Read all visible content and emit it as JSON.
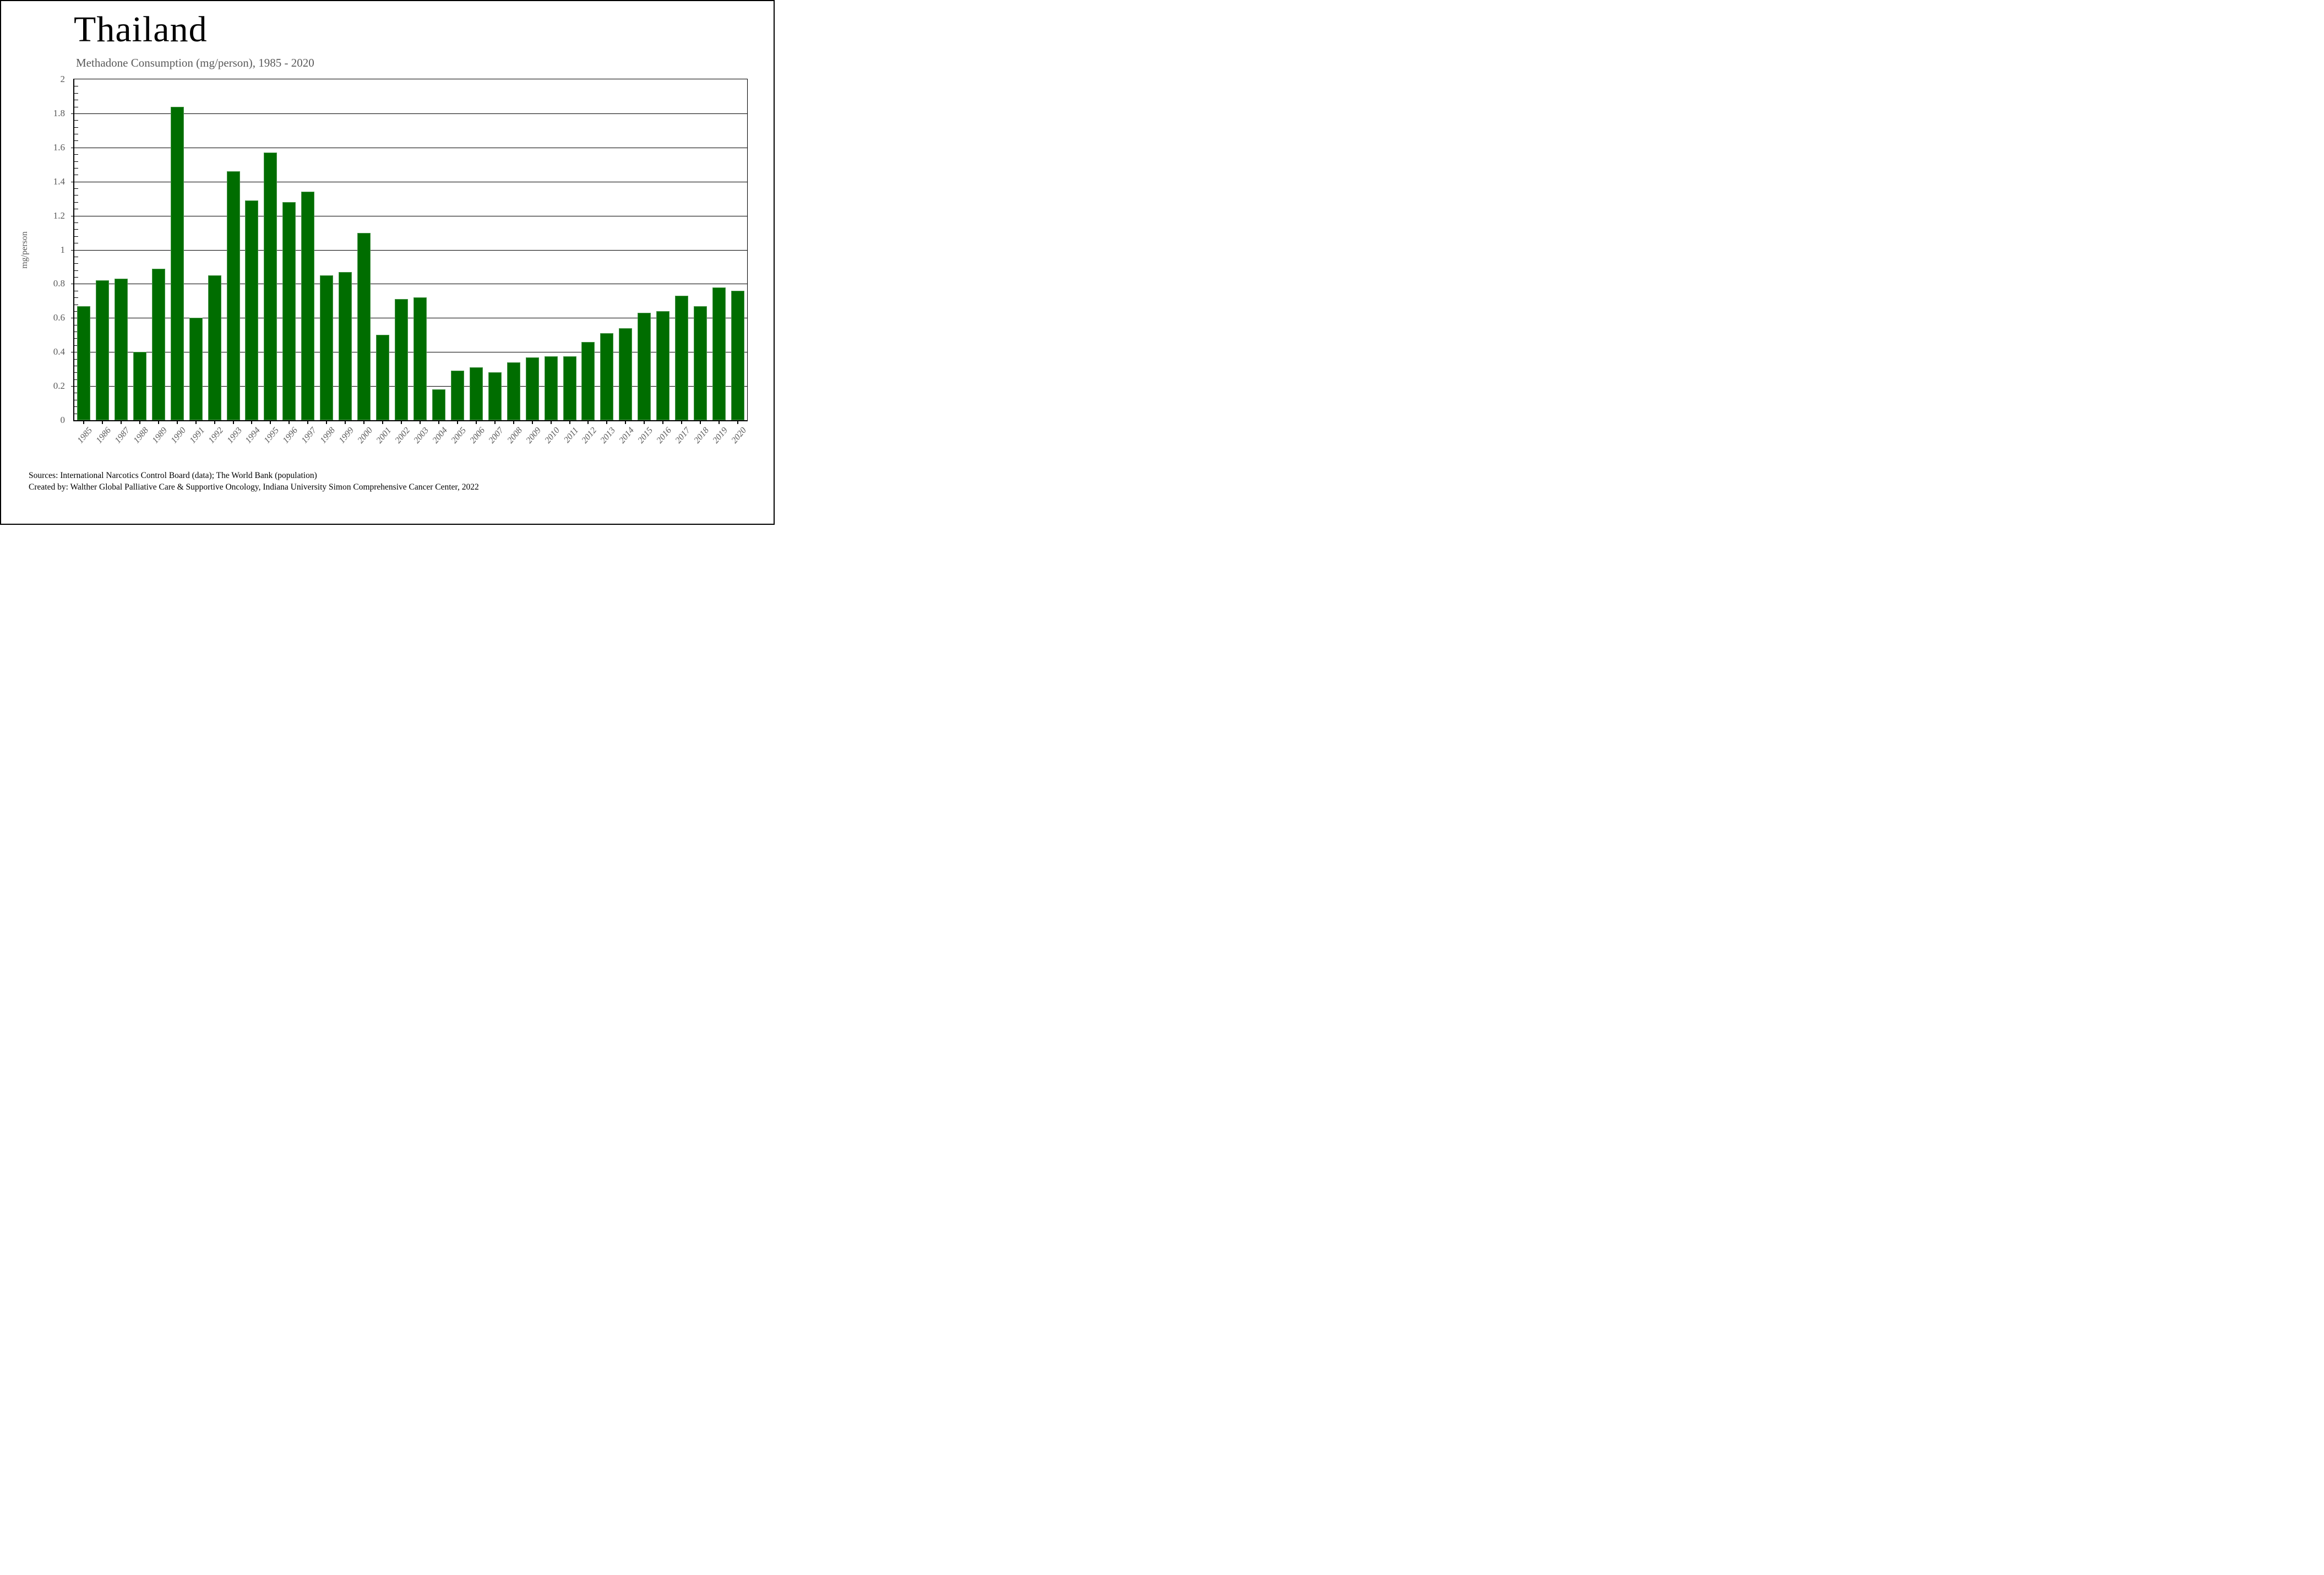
{
  "header": {
    "title": "Thailand",
    "subtitle": "Methadone Consumption (mg/person), 1985 - 2020"
  },
  "chart_data": {
    "type": "bar",
    "title": "Thailand",
    "subtitle": "Methadone Consumption (mg/person), 1985 - 2020",
    "xlabel": "",
    "ylabel": "mg/person",
    "ylim": [
      0,
      2
    ],
    "ytick_step": 0.2,
    "ytick_values": [
      0,
      0.2,
      0.4,
      0.6,
      0.8,
      1,
      1.2,
      1.4,
      1.6,
      1.8,
      2
    ],
    "ytick_labels": [
      "0",
      "0.2",
      "0.4",
      "0.6",
      "0.8",
      "1",
      "1.2",
      "1.4",
      "1.6",
      "1.8",
      "2"
    ],
    "minor_ticks_per_interval": 5,
    "grid": "horizontal",
    "legend_position": "none",
    "bar_color": "#006D00",
    "categories": [
      1985,
      1986,
      1987,
      1988,
      1989,
      1990,
      1991,
      1992,
      1993,
      1994,
      1995,
      1996,
      1997,
      1998,
      1999,
      2000,
      2001,
      2002,
      2003,
      2004,
      2005,
      2006,
      2007,
      2008,
      2009,
      2010,
      2011,
      2012,
      2013,
      2014,
      2015,
      2016,
      2017,
      2018,
      2019,
      2020
    ],
    "values": [
      0.67,
      0.82,
      0.83,
      0.4,
      0.89,
      1.84,
      0.6,
      0.85,
      1.46,
      1.29,
      1.57,
      1.28,
      1.34,
      0.85,
      0.87,
      1.1,
      0.5,
      0.71,
      0.72,
      0.18,
      0.29,
      0.31,
      0.28,
      0.34,
      0.37,
      0.375,
      0.375,
      0.46,
      0.51,
      0.54,
      0.63,
      0.64,
      0.73,
      0.67,
      0.78,
      0.76
    ]
  },
  "footer": {
    "sources_line": "Sources: International Narcotics Control Board (data); The World Bank (population)",
    "created_line": "Created by: Walther Global Palliative Care & Supportive Oncology, Indiana University Simon Comprehensive Cancer Center, 2022"
  },
  "colors": {
    "bar": "#006D00",
    "axis_text": "#595959",
    "title_text": "#000000",
    "gridline": "#000000",
    "background": "#ffffff"
  }
}
